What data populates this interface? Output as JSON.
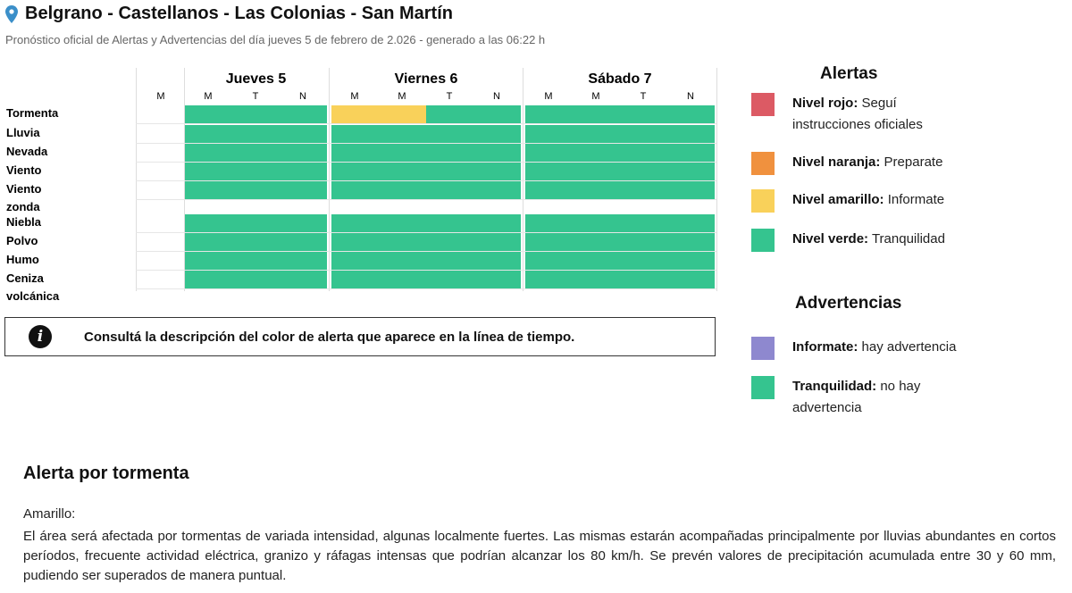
{
  "header": {
    "title": "Belgrano - Castellanos - Las Colonias - San Martín",
    "subtitle": "Pronóstico oficial de Alertas y Advertencias del día jueves 5 de febrero de 2.026 - generado a las 06:22 h",
    "icon": "location-pin-icon"
  },
  "colors": {
    "green": "#35c48f",
    "yellow": "#f9d15a",
    "orange": "#f0913e",
    "red": "#dc5a64",
    "purple": "#8e88cf"
  },
  "table": {
    "first_col_period": "M",
    "days": [
      {
        "name": "Jueves 5",
        "periods": [
          "M",
          "T",
          "N"
        ]
      },
      {
        "name": "Viernes 6",
        "periods": [
          "M",
          "M",
          "T",
          "N"
        ]
      },
      {
        "name": "Sábado 7",
        "periods": [
          "M",
          "M",
          "T",
          "N"
        ]
      }
    ],
    "rows": [
      {
        "label": "Tormenta",
        "levels": [
          "green",
          "green",
          "green",
          "yellow",
          "yellow",
          "green",
          "green",
          "green",
          "green",
          "green",
          "green"
        ]
      },
      {
        "label": "Lluvia",
        "levels": [
          "green",
          "green",
          "green",
          "green",
          "green",
          "green",
          "green",
          "green",
          "green",
          "green",
          "green"
        ]
      },
      {
        "label": "Nevada",
        "levels": [
          "green",
          "green",
          "green",
          "green",
          "green",
          "green",
          "green",
          "green",
          "green",
          "green",
          "green"
        ]
      },
      {
        "label": "Viento",
        "levels": [
          "green",
          "green",
          "green",
          "green",
          "green",
          "green",
          "green",
          "green",
          "green",
          "green",
          "green"
        ]
      },
      {
        "label": "Viento zonda",
        "levels": [
          "green",
          "green",
          "green",
          "green",
          "green",
          "green",
          "green",
          "green",
          "green",
          "green",
          "green"
        ]
      },
      {
        "label": "Niebla",
        "levels": [
          "green",
          "green",
          "green",
          "green",
          "green",
          "green",
          "green",
          "green",
          "green",
          "green",
          "green"
        ]
      },
      {
        "label": "Polvo",
        "levels": [
          "green",
          "green",
          "green",
          "green",
          "green",
          "green",
          "green",
          "green",
          "green",
          "green",
          "green"
        ]
      },
      {
        "label": "Humo",
        "levels": [
          "green",
          "green",
          "green",
          "green",
          "green",
          "green",
          "green",
          "green",
          "green",
          "green",
          "green"
        ]
      },
      {
        "label": "Ceniza volcánica",
        "levels": [
          "green",
          "green",
          "green",
          "green",
          "green",
          "green",
          "green",
          "green",
          "green",
          "green",
          "green"
        ]
      }
    ]
  },
  "legend": {
    "alerts_title": "Alertas",
    "alerts": [
      {
        "bold": "Nivel rojo:",
        "text": " Seguí instrucciones oficiales",
        "color": "#dc5a64"
      },
      {
        "bold": "Nivel naranja:",
        "text": " Preparate",
        "color": "#f0913e"
      },
      {
        "bold": "Nivel amarillo:",
        "text": " Informate",
        "color": "#f9d15a"
      },
      {
        "bold": "Nivel verde:",
        "text": " Tranquilidad",
        "color": "#35c48f"
      }
    ],
    "warnings_title": "Advertencias",
    "warnings": [
      {
        "bold": "Informate:",
        "text": " hay advertencia",
        "color": "#8e88cf"
      },
      {
        "bold": "Tranquilidad:",
        "text": " no hay advertencia",
        "color": "#35c48f"
      }
    ]
  },
  "notice": {
    "icon": "info-icon",
    "text": "Consultá la descripción del color de alerta que aparece en la línea de tiempo."
  },
  "alert_detail": {
    "heading": "Alerta por tormenta",
    "level": "Amarillo:",
    "description": "El área será afectada por tormentas de variada intensidad, algunas localmente fuertes. Las mismas estarán acompañadas principalmente por lluvias abundantes en cortos períodos, frecuente actividad eléctrica, granizo y ráfagas intensas que podrían alcanzar los 80 km/h. Se prevén valores de precipitación acumulada entre 30 y 60 mm, pudiendo ser superados de manera puntual."
  }
}
